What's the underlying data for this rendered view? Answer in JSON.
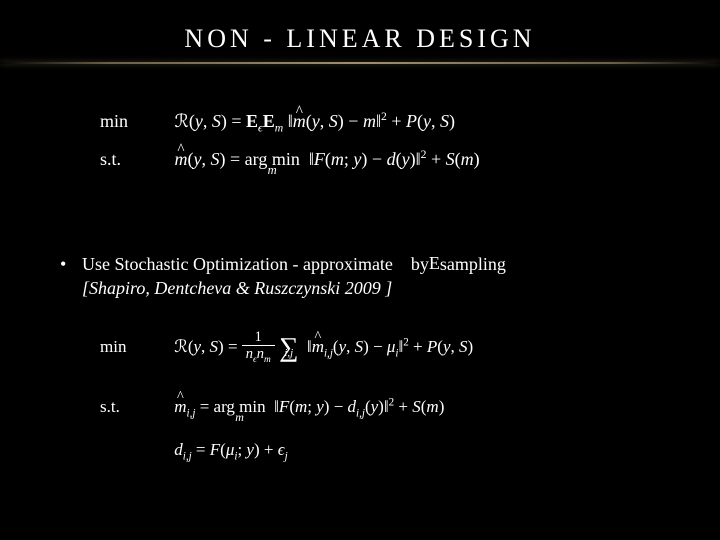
{
  "slide": {
    "title": "NON - LINEAR  DESIGN",
    "colors": {
      "background": "#000000",
      "text": "#ffffff",
      "underline_gradient": [
        "#786450",
        "#c8b48c"
      ]
    },
    "equations": {
      "eq1_label": "min",
      "eq1_body": "ℛ(y, S) = 𝐄_ϵ𝐄_m ||m̂(y, S) − m||² + P(y, S)",
      "eq2_label": "s.t.",
      "eq2_body": "m̂(y, S) = arg min_m ||F(m; y) − d(y)||² + S(m)",
      "eq3_label": "min",
      "eq3_body": "ℛ(y, S) = (1 / n_ϵ n_m) Σ_{i,j} ||m̂_{i,j}(y, S) − μ_i||² + P(y, S)",
      "eq4_label": "s.t.",
      "eq4_body": "m̂_{i,j} = arg min_m ||F(m; y) − d_{i,j}(y)||² + S(m)",
      "eq5_body": "d_{i,j} = F(μ_i; y) + ϵ_j"
    },
    "bullet": {
      "text_prefix": "Use Stochastic Optimization - approximate",
      "text_mid": "by",
      "text_suffix_math": "E",
      "text_suffix2": "sampling",
      "reference": "[Shapiro, Dentcheva & Ruszczynski 2009 ]"
    }
  }
}
